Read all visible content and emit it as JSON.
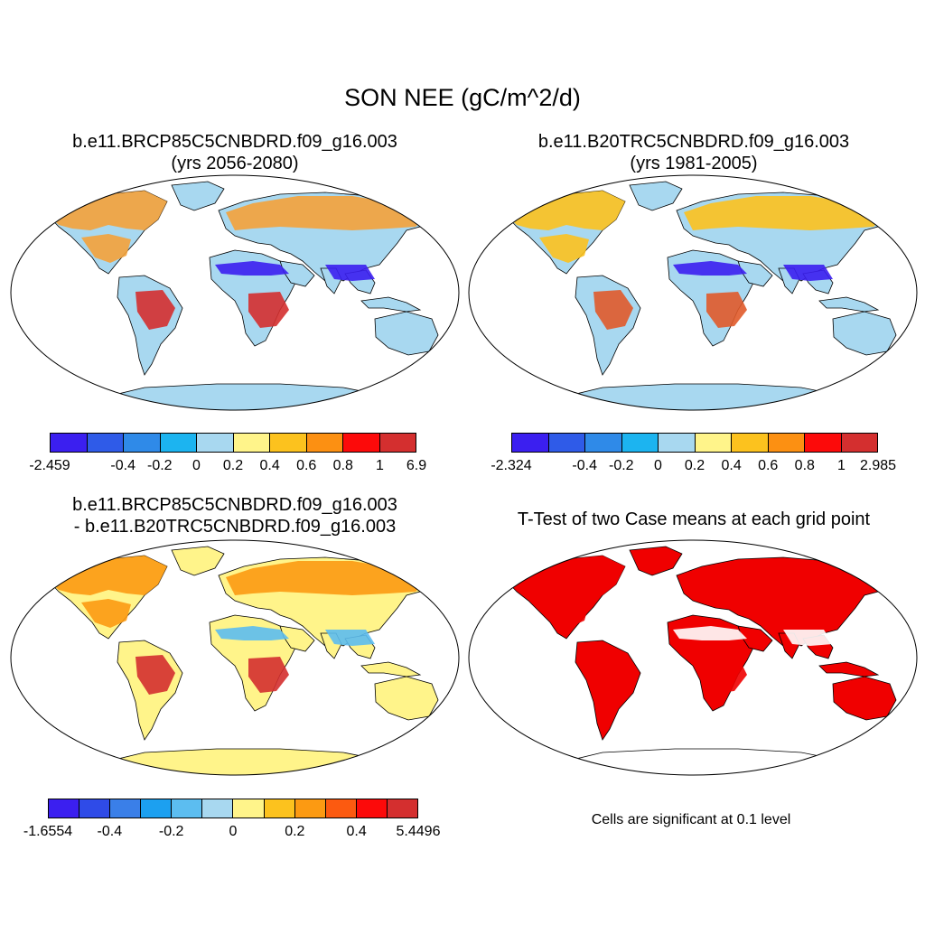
{
  "title": "SON NEE (gC/m^2/d)",
  "panels": [
    {
      "id": "p1",
      "title_line1": "b.e11.BRCP85C5CNBDRD.f09_g16.003",
      "title_line2": "(yrs 2056-2080)"
    },
    {
      "id": "p2",
      "title_line1": "b.e11.B20TRC5CNBDRD.f09_g16.003",
      "title_line2": "(yrs 1981-2005)"
    },
    {
      "id": "p3",
      "title_line1": "b.e11.BRCP85C5CNBDRD.f09_g16.003",
      "title_line2": "- b.e11.B20TRC5CNBDRD.f09_g16.003"
    },
    {
      "id": "p4",
      "title_line1": "T-Test of two Case means at each grid point",
      "title_line2": ""
    }
  ],
  "colorbars": {
    "cb1": {
      "colors": [
        "#3b1ff0",
        "#2f5be8",
        "#2f8ae8",
        "#1cb4f0",
        "#a8d8f0",
        "#fff48a",
        "#fcc21e",
        "#fc9012",
        "#fc0a0a",
        "#d42f2f"
      ],
      "labels": [
        "-2.459",
        "-0.4",
        "-0.2",
        "0",
        "0.2",
        "0.4",
        "0.6",
        "0.8",
        "1",
        "6.9"
      ]
    },
    "cb2": {
      "colors": [
        "#3b1ff0",
        "#2f5be8",
        "#2f8ae8",
        "#1cb4f0",
        "#a8d8f0",
        "#fff48a",
        "#fcc21e",
        "#fc9012",
        "#fc0a0a",
        "#d42f2f"
      ],
      "labels": [
        "-2.324",
        "-0.4",
        "-0.2",
        "0",
        "0.2",
        "0.4",
        "0.6",
        "0.8",
        "1",
        "2.985"
      ]
    },
    "cb3": {
      "colors": [
        "#3b1ff0",
        "#2f4be8",
        "#3a7fe8",
        "#1ca0f0",
        "#5cbdf0",
        "#a8d8f0",
        "#fff48a",
        "#fcc21e",
        "#fc9a12",
        "#fc5a10",
        "#fc0a0a",
        "#d42f2f"
      ],
      "labels": [
        "-1.6554",
        "-0.4",
        "-0.2",
        "0",
        "0.2",
        "0.4",
        "5.4496"
      ]
    }
  },
  "note": "Cells are significant at 0.1 level",
  "fills": {
    "ocean": "#ffffff",
    "p1": {
      "land": "#a8d8f0",
      "north": "#f4a23a",
      "tropics": "#3b1ff0",
      "amazon": "#d42f2f",
      "antarctica": "#a8d8f0"
    },
    "p2": {
      "land": "#a8d8f0",
      "north": "#fcc21e",
      "tropics": "#3b1ff0",
      "amazon": "#e05a2a",
      "antarctica": "#a8d8f0"
    },
    "p3": {
      "land": "#fff48a",
      "north": "#fc9a12",
      "tropics": "#5cbdf0",
      "amazon": "#d42f2f",
      "antarctica": "#fff48a"
    },
    "p4": {
      "land": "#f00000",
      "north": "#f00000",
      "tropics": "#ffffff",
      "amazon": "#f00000",
      "antarctica": "#ffffff"
    }
  }
}
